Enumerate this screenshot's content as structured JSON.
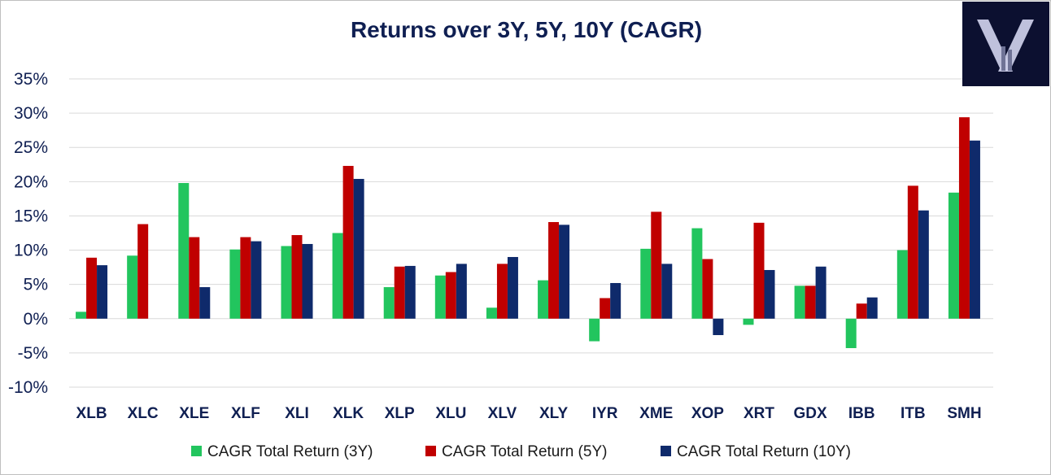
{
  "chart_data": {
    "type": "bar",
    "title": "Returns over 3Y, 5Y, 10Y (CAGR)",
    "xlabel": "",
    "ylabel": "",
    "ylim": [
      -10,
      35
    ],
    "yticks": [
      35,
      30,
      25,
      20,
      15,
      10,
      5,
      0,
      -5,
      -10
    ],
    "ytick_labels": [
      "35%",
      "30%",
      "25%",
      "20%",
      "15%",
      "10%",
      "5%",
      "0%",
      "-5%",
      "-10%"
    ],
    "grid": true,
    "legend_position": "bottom",
    "categories": [
      "XLB",
      "XLC",
      "XLE",
      "XLF",
      "XLI",
      "XLK",
      "XLP",
      "XLU",
      "XLV",
      "XLY",
      "IYR",
      "XME",
      "XOP",
      "XRT",
      "GDX",
      "IBB",
      "ITB",
      "SMH"
    ],
    "series": [
      {
        "name": "CAGR Total Return (3Y)",
        "color": "#22c55e",
        "values": [
          1.0,
          9.2,
          19.8,
          10.1,
          10.6,
          12.5,
          4.6,
          6.3,
          1.6,
          5.6,
          -3.3,
          10.2,
          13.2,
          -0.9,
          4.8,
          -4.3,
          10.0,
          18.4
        ]
      },
      {
        "name": "CAGR Total Return (5Y)",
        "color": "#c00000",
        "values": [
          8.9,
          13.8,
          11.9,
          11.9,
          12.2,
          22.3,
          7.6,
          6.8,
          8.0,
          14.1,
          3.0,
          15.6,
          8.7,
          14.0,
          4.8,
          2.2,
          19.4,
          29.4
        ]
      },
      {
        "name": "CAGR Total Return (10Y)",
        "color": "#0f2a6b",
        "values": [
          7.8,
          null,
          4.6,
          11.3,
          10.9,
          20.4,
          7.7,
          8.0,
          9.0,
          13.7,
          5.2,
          8.0,
          -2.4,
          7.1,
          7.6,
          3.1,
          15.8,
          26.0
        ]
      }
    ]
  },
  "logo": {
    "name": "logo-x-mark",
    "background": "#0c1030",
    "foreground": "#c9cbe6"
  }
}
